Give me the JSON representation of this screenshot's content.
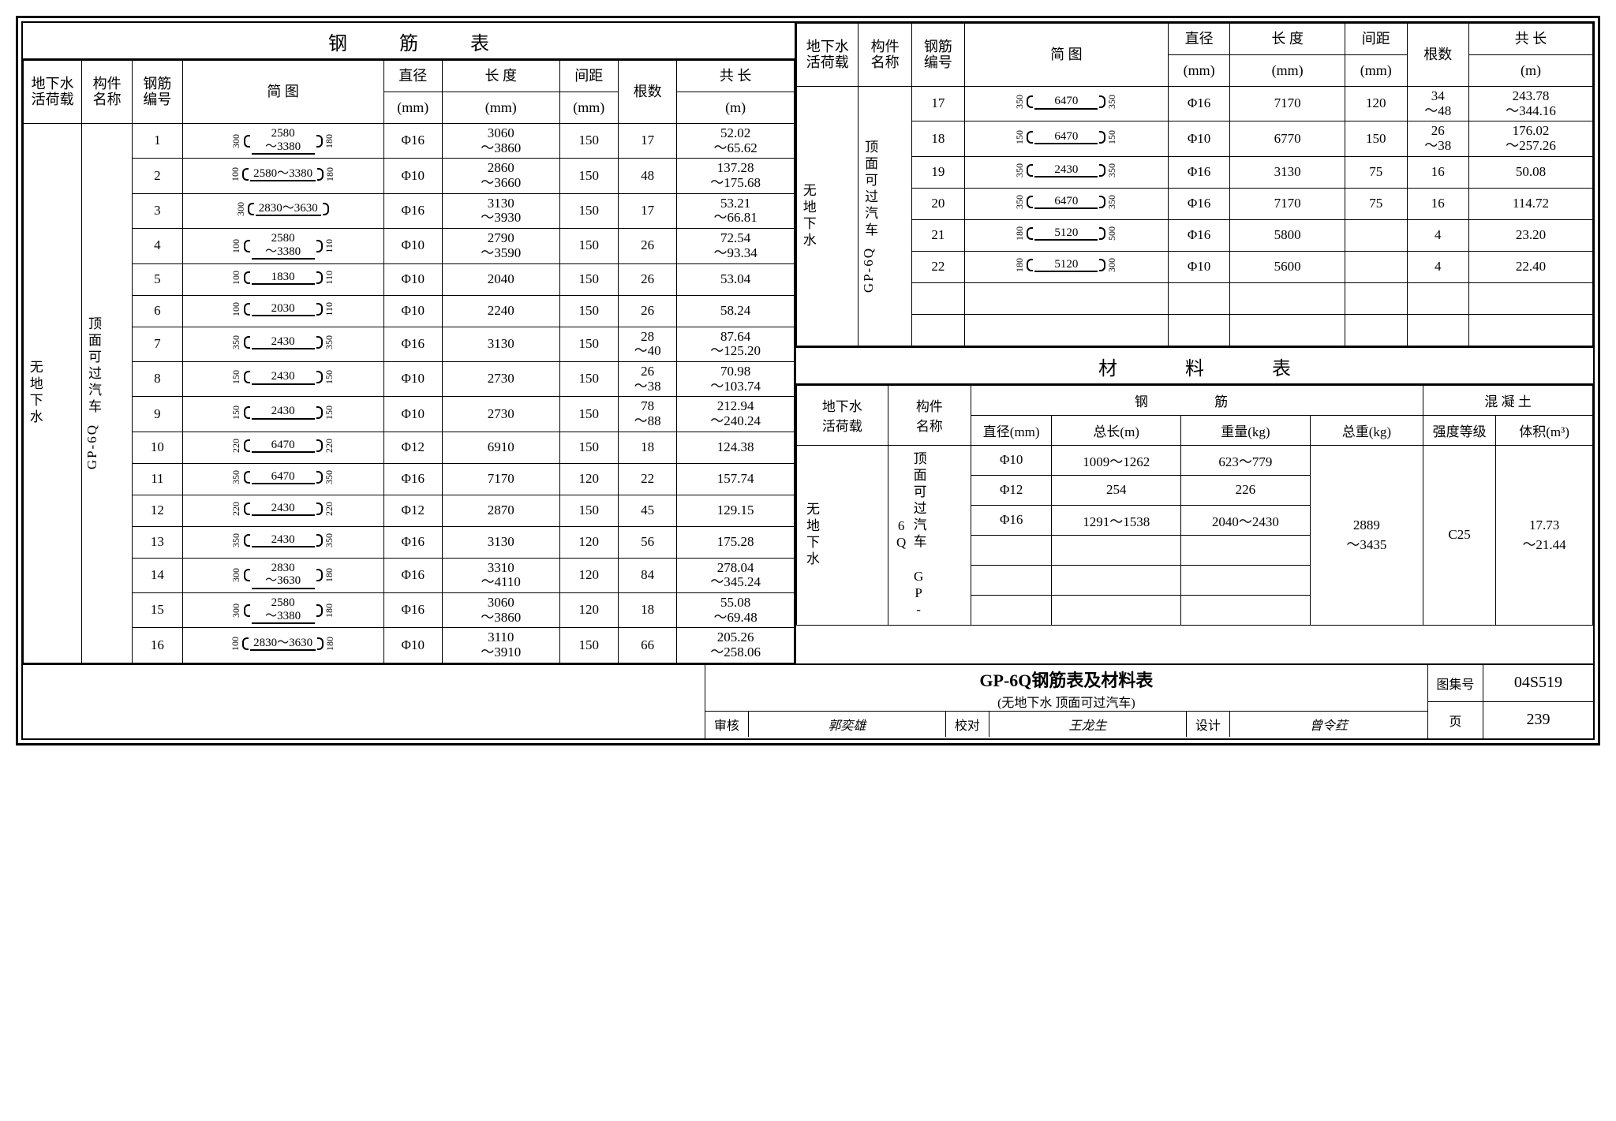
{
  "colors": {
    "ink": "#000000",
    "paper": "#ffffff"
  },
  "titles": {
    "rebar_table": "钢 筋 表",
    "material_table": "材 料 表"
  },
  "headers": {
    "water_load": "地下水\n活荷载",
    "member_name": "构件\n名称",
    "bar_no": "钢筋\n编号",
    "diagram": "简  图",
    "dia": "直径",
    "dia_unit": "(mm)",
    "length": "长 度",
    "length_unit": "(mm)",
    "spacing": "间距",
    "spacing_unit": "(mm)",
    "count": "根数",
    "total_len": "共 长",
    "total_len_unit": "(m)"
  },
  "condition": {
    "water": "无地下水",
    "surface": "顶面可过汽车"
  },
  "member": "GP-6Q",
  "left_rows": [
    {
      "no": "1",
      "d_left": "300",
      "d_mid": "2580\n～3380",
      "d_right": "180",
      "dia": "Φ16",
      "len": "3060\n～3860",
      "sp": "150",
      "cnt": "17",
      "tot": "52.02\n～65.62"
    },
    {
      "no": "2",
      "d_left": "100",
      "d_mid": "2580～3380",
      "d_right": "180",
      "dia": "Φ10",
      "len": "2860\n～3660",
      "sp": "150",
      "cnt": "48",
      "tot": "137.28\n～175.68"
    },
    {
      "no": "3",
      "d_left": "300",
      "d_mid": "2830～3630",
      "d_right": "",
      "dia": "Φ16",
      "len": "3130\n～3930",
      "sp": "150",
      "cnt": "17",
      "tot": "53.21\n～66.81"
    },
    {
      "no": "4",
      "d_left": "100",
      "d_mid": "2580\n～3380",
      "d_right": "110",
      "dia": "Φ10",
      "len": "2790\n～3590",
      "sp": "150",
      "cnt": "26",
      "tot": "72.54\n～93.34"
    },
    {
      "no": "5",
      "d_left": "100",
      "d_mid": "1830",
      "d_right": "110",
      "dia": "Φ10",
      "len": "2040",
      "sp": "150",
      "cnt": "26",
      "tot": "53.04"
    },
    {
      "no": "6",
      "d_left": "100",
      "d_mid": "2030",
      "d_right": "110",
      "dia": "Φ10",
      "len": "2240",
      "sp": "150",
      "cnt": "26",
      "tot": "58.24"
    },
    {
      "no": "7",
      "d_left": "350",
      "d_mid": "2430",
      "d_right": "350",
      "dia": "Φ16",
      "len": "3130",
      "sp": "150",
      "cnt": "28\n～40",
      "tot": "87.64\n～125.20"
    },
    {
      "no": "8",
      "d_left": "150",
      "d_mid": "2430",
      "d_right": "150",
      "dia": "Φ10",
      "len": "2730",
      "sp": "150",
      "cnt": "26\n～38",
      "tot": "70.98\n～103.74"
    },
    {
      "no": "9",
      "d_left": "150",
      "d_mid": "2430",
      "d_right": "150",
      "dia": "Φ10",
      "len": "2730",
      "sp": "150",
      "cnt": "78\n～88",
      "tot": "212.94\n～240.24"
    },
    {
      "no": "10",
      "d_left": "220",
      "d_mid": "6470",
      "d_right": "220",
      "dia": "Φ12",
      "len": "6910",
      "sp": "150",
      "cnt": "18",
      "tot": "124.38"
    },
    {
      "no": "11",
      "d_left": "350",
      "d_mid": "6470",
      "d_right": "350",
      "dia": "Φ16",
      "len": "7170",
      "sp": "120",
      "cnt": "22",
      "tot": "157.74"
    },
    {
      "no": "12",
      "d_left": "220",
      "d_mid": "2430",
      "d_right": "220",
      "dia": "Φ12",
      "len": "2870",
      "sp": "150",
      "cnt": "45",
      "tot": "129.15"
    },
    {
      "no": "13",
      "d_left": "350",
      "d_mid": "2430",
      "d_right": "350",
      "dia": "Φ16",
      "len": "3130",
      "sp": "120",
      "cnt": "56",
      "tot": "175.28"
    },
    {
      "no": "14",
      "d_left": "300",
      "d_mid": "2830\n～3630",
      "d_right": "180",
      "dia": "Φ16",
      "len": "3310\n～4110",
      "sp": "120",
      "cnt": "84",
      "tot": "278.04\n～345.24"
    },
    {
      "no": "15",
      "d_left": "300",
      "d_mid": "2580\n～3380",
      "d_right": "180",
      "dia": "Φ16",
      "len": "3060\n～3860",
      "sp": "120",
      "cnt": "18",
      "tot": "55.08\n～69.48"
    },
    {
      "no": "16",
      "d_left": "100",
      "d_mid": "2830～3630",
      "d_right": "180",
      "dia": "Φ10",
      "len": "3110\n～3910",
      "sp": "150",
      "cnt": "66",
      "tot": "205.26\n～258.06"
    }
  ],
  "right_rows": [
    {
      "no": "17",
      "d_left": "350",
      "d_mid": "6470",
      "d_right": "350",
      "dia": "Φ16",
      "len": "7170",
      "sp": "120",
      "cnt": "34\n～48",
      "tot": "243.78\n～344.16"
    },
    {
      "no": "18",
      "d_left": "150",
      "d_mid": "6470",
      "d_right": "150",
      "dia": "Φ10",
      "len": "6770",
      "sp": "150",
      "cnt": "26\n～38",
      "tot": "176.02\n～257.26"
    },
    {
      "no": "19",
      "d_left": "350",
      "d_mid": "2430",
      "d_right": "350",
      "dia": "Φ16",
      "len": "3130",
      "sp": "75",
      "cnt": "16",
      "tot": "50.08"
    },
    {
      "no": "20",
      "d_left": "350",
      "d_mid": "6470",
      "d_right": "350",
      "dia": "Φ16",
      "len": "7170",
      "sp": "75",
      "cnt": "16",
      "tot": "114.72"
    },
    {
      "no": "21",
      "d_left": "180",
      "d_mid": "5120",
      "d_right": "500",
      "dia": "Φ16",
      "len": "5800",
      "sp": "",
      "cnt": "4",
      "tot": "23.20"
    },
    {
      "no": "22",
      "d_left": "180",
      "d_mid": "5120",
      "d_right": "300",
      "dia": "Φ10",
      "len": "5600",
      "sp": "",
      "cnt": "4",
      "tot": "22.40"
    }
  ],
  "mat_headers": {
    "steel": "钢  筋",
    "concrete": "混 凝 土",
    "dia": "直径(mm)",
    "tot_len": "总长(m)",
    "weight": "重量(kg)",
    "tot_weight": "总重(kg)",
    "grade": "强度等级",
    "vol": "体积(m³)"
  },
  "mat_rows": [
    {
      "dia": "Φ10",
      "tot_len": "1009～1262",
      "weight": "623～779"
    },
    {
      "dia": "Φ12",
      "tot_len": "254",
      "weight": "226"
    },
    {
      "dia": "Φ16",
      "tot_len": "1291～1538",
      "weight": "2040～2430"
    }
  ],
  "mat_summary": {
    "tot_weight": "2889\n～3435",
    "grade": "C25",
    "vol": "17.73\n～21.44"
  },
  "footer": {
    "big_title": "GP-6Q钢筋表及材料表",
    "sub_title": "(无地下水  顶面可过汽车)",
    "reviewer_lab": "审核",
    "reviewer": "郭奕雄",
    "checker_lab": "校对",
    "checker": "王龙生",
    "designer_lab": "设计",
    "designer": "曾令荭",
    "atlas_lab": "图集号",
    "atlas": "04S519",
    "page_lab": "页",
    "page": "239"
  }
}
